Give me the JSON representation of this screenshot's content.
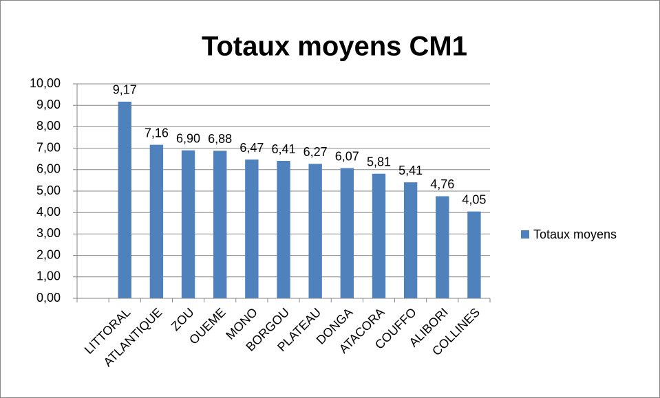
{
  "chart_data": {
    "type": "bar",
    "title": "Totaux moyens CM1",
    "categories": [
      null,
      "LITTORAL",
      "ATLANTIQUE",
      "ZOU",
      "OUEME",
      "MONO",
      "BORGOU",
      "PLATEAU",
      "DONGA",
      "ATACORA",
      "COUFFO",
      "ALIBORI",
      "COLLINES"
    ],
    "series": [
      {
        "name": "Totaux moyens",
        "color": "#4f81bd",
        "values": [
          null,
          9.17,
          7.16,
          6.9,
          6.88,
          6.47,
          6.41,
          6.27,
          6.07,
          5.81,
          5.41,
          4.76,
          4.05
        ],
        "value_labels": [
          null,
          "9,17",
          "7,16",
          "6,90",
          "6,88",
          "6,47",
          "6,41",
          "6,27",
          "6,07",
          "5,81",
          "5,41",
          "4,76",
          "4,05"
        ]
      }
    ],
    "ylim": [
      0,
      10
    ],
    "yticks": [
      {
        "value": 0,
        "label": "0,00"
      },
      {
        "value": 1,
        "label": "1,00"
      },
      {
        "value": 2,
        "label": "2,00"
      },
      {
        "value": 3,
        "label": "3,00"
      },
      {
        "value": 4,
        "label": "4,00"
      },
      {
        "value": 5,
        "label": "5,00"
      },
      {
        "value": 6,
        "label": "6,00"
      },
      {
        "value": 7,
        "label": "7,00"
      },
      {
        "value": 8,
        "label": "8,00"
      },
      {
        "value": 9,
        "label": "9,00"
      },
      {
        "value": 10,
        "label": "10,00"
      }
    ],
    "grid": true,
    "legend": "right"
  }
}
